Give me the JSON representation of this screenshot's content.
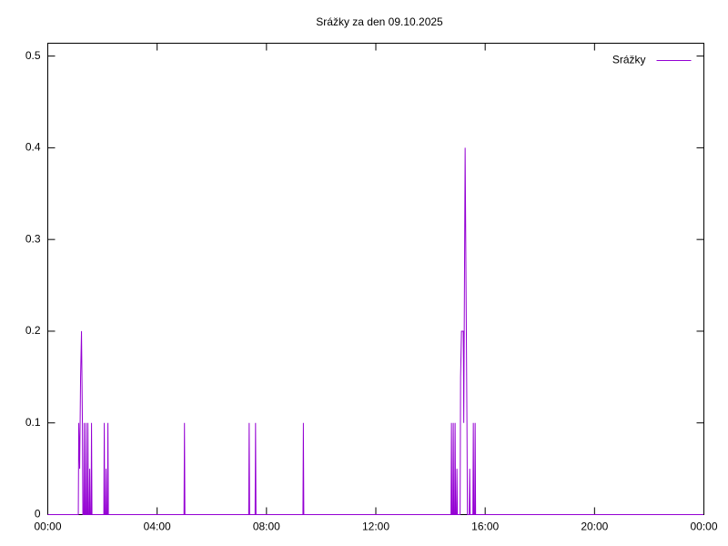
{
  "chart_data": {
    "type": "line",
    "title": "Srážky za den 09.10.2025",
    "x": [
      "00:00",
      "01:07",
      "01:08",
      "01:10",
      "01:12",
      "01:14",
      "01:16",
      "01:17",
      "01:19",
      "01:20",
      "01:21",
      "01:23",
      "01:24",
      "01:25",
      "01:27",
      "01:28",
      "01:29",
      "01:31",
      "01:32",
      "01:33",
      "01:35",
      "01:36",
      "01:37",
      "02:03",
      "02:04",
      "02:05",
      "02:07",
      "02:08",
      "02:09",
      "02:11",
      "02:12",
      "02:13",
      "04:59",
      "05:00",
      "05:01",
      "07:21",
      "07:22",
      "07:23",
      "07:35",
      "07:36",
      "07:37",
      "09:20",
      "09:21",
      "09:22",
      "14:45",
      "14:46",
      "14:47",
      "14:49",
      "14:50",
      "14:51",
      "14:53",
      "14:54",
      "14:55",
      "14:57",
      "14:58",
      "14:59",
      "15:05",
      "15:06",
      "15:08",
      "15:12",
      "15:13",
      "15:16",
      "15:18",
      "15:20",
      "15:21",
      "15:25",
      "15:26",
      "15:27",
      "15:33",
      "15:34",
      "15:35",
      "15:37",
      "15:38",
      "15:39",
      "23:59"
    ],
    "series": [
      {
        "name": "Srážky",
        "color": "#9400d3",
        "values": [
          0,
          0,
          0.1,
          0.05,
          0.15,
          0.2,
          0.1,
          0,
          0,
          0.1,
          0,
          0,
          0.1,
          0,
          0,
          0.1,
          0,
          0,
          0.05,
          0,
          0,
          0.1,
          0,
          0,
          0.1,
          0,
          0,
          0.05,
          0,
          0,
          0.1,
          0,
          0,
          0.1,
          0,
          0,
          0.1,
          0,
          0,
          0.1,
          0,
          0,
          0.1,
          0,
          0,
          0.1,
          0,
          0,
          0.1,
          0,
          0,
          0.1,
          0,
          0,
          0.05,
          0,
          0,
          0.15,
          0.2,
          0.2,
          0.1,
          0.4,
          0.25,
          0.1,
          0,
          0,
          0.05,
          0,
          0,
          0.1,
          0,
          0,
          0.1,
          0,
          0
        ]
      }
    ],
    "xlim": [
      "00:00",
      "24:00"
    ],
    "xticks": [
      "00:00",
      "04:00",
      "08:00",
      "12:00",
      "16:00",
      "20:00",
      "00:00"
    ],
    "ylim": [
      0,
      0.514
    ],
    "yticks": [
      0,
      0.1,
      0.2,
      0.3,
      0.4,
      0.5
    ],
    "legend": "top-right"
  }
}
